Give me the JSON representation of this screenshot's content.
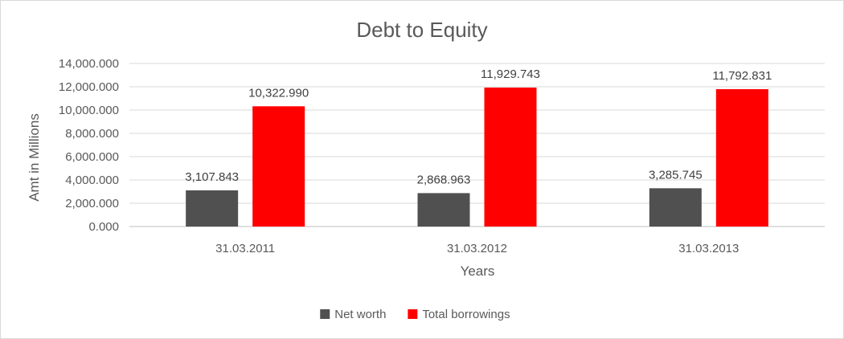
{
  "chart_data": {
    "type": "bar",
    "title": "Debt to Equity",
    "xlabel": "Years",
    "ylabel": "Amt in Millions",
    "categories": [
      "31.03.2011",
      "31.03.2012",
      "31.03.2013"
    ],
    "series": [
      {
        "name": "Net worth",
        "color": "#505050",
        "values": [
          3107.843,
          2868.963,
          3285.745
        ],
        "labels": [
          "3,107.843",
          "2,868.963",
          "3,285.745"
        ]
      },
      {
        "name": "Total borrowings",
        "color": "#ff0000",
        "values": [
          10322.99,
          11929.743,
          11792.831
        ],
        "labels": [
          "10,322.990",
          "11,929.743",
          "11,792.831"
        ]
      }
    ],
    "ylim": [
      0,
      14000
    ],
    "yticks": [
      0,
      2000,
      4000,
      6000,
      8000,
      10000,
      12000,
      14000
    ],
    "ytick_labels": [
      "0.000",
      "2,000.000",
      "4,000.000",
      "6,000.000",
      "8,000.000",
      "10,000.000",
      "12,000.000",
      "14,000.000"
    ],
    "grid": true,
    "legend_position": "bottom"
  }
}
